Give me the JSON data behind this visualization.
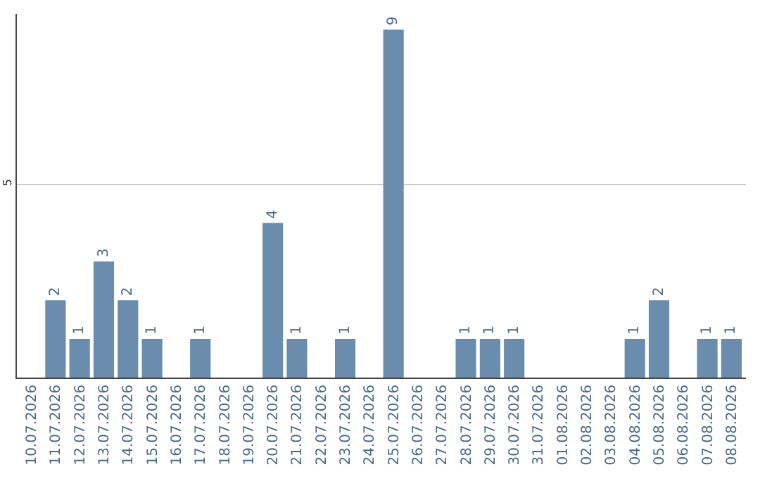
{
  "chart_data": {
    "type": "bar",
    "categories": [
      "10.07.2026",
      "11.07.2026",
      "12.07.2026",
      "13.07.2026",
      "14.07.2026",
      "15.07.2026",
      "16.07.2026",
      "17.07.2026",
      "18.07.2026",
      "19.07.2026",
      "20.07.2026",
      "21.07.2026",
      "22.07.2026",
      "23.07.2026",
      "24.07.2026",
      "25.07.2026",
      "26.07.2026",
      "27.07.2026",
      "28.07.2026",
      "29.07.2026",
      "30.07.2026",
      "31.07.2026",
      "01.08.2026",
      "02.08.2026",
      "03.08.2026",
      "04.08.2026",
      "05.08.2026",
      "06.08.2026",
      "07.08.2026",
      "08.08.2026"
    ],
    "values": [
      0,
      2,
      1,
      3,
      2,
      1,
      0,
      1,
      0,
      0,
      4,
      1,
      0,
      1,
      0,
      9,
      0,
      0,
      1,
      1,
      1,
      0,
      0,
      0,
      0,
      1,
      2,
      0,
      1,
      1
    ],
    "value_labels": [
      null,
      "2",
      "1",
      "3",
      "2",
      "1",
      null,
      "1",
      null,
      null,
      "4",
      "1",
      null,
      "1",
      null,
      "9",
      null,
      null,
      "1",
      "1",
      "1",
      null,
      null,
      null,
      null,
      "1",
      "2",
      null,
      "1",
      "1"
    ],
    "color": "#6a8cad",
    "ylim": [
      0,
      9.4
    ],
    "yticks": [
      5
    ],
    "grid": "y"
  }
}
